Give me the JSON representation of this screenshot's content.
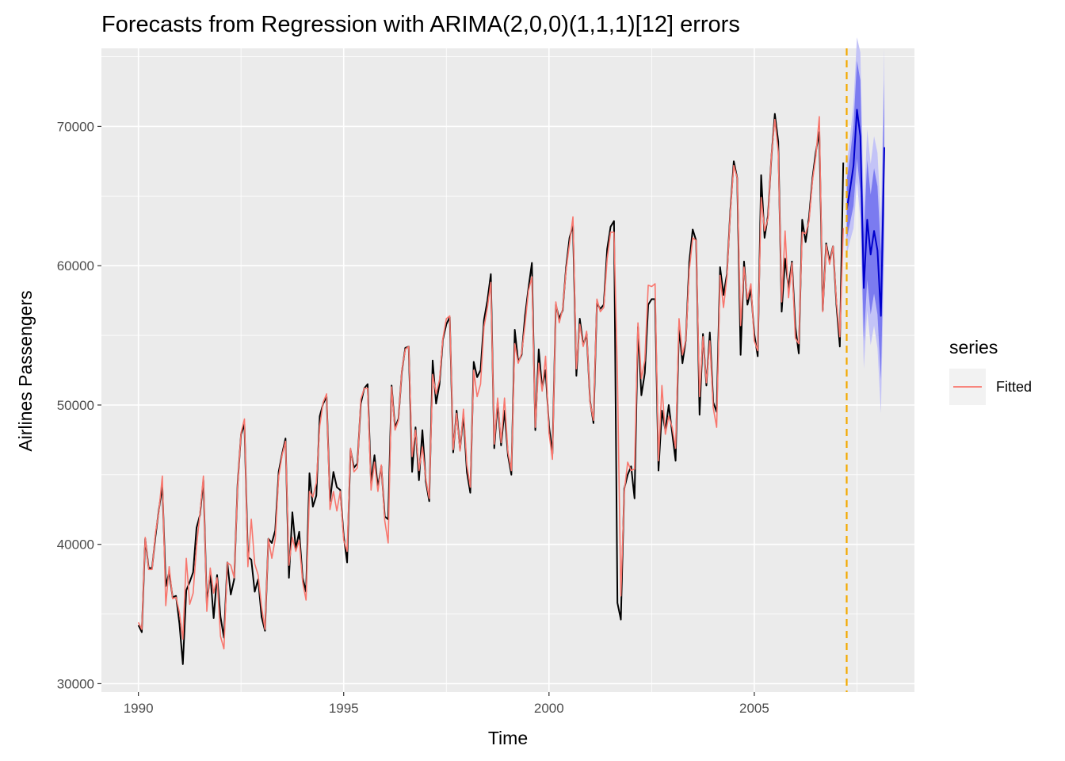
{
  "chart_data": {
    "type": "line",
    "title": "Forecasts from Regression with ARIMA(2,0,0)(1,1,1)[12] errors",
    "xlabel": "Time",
    "ylabel": "Airlines Passengers",
    "xlim": [
      1989.1,
      2008.9
    ],
    "ylim": [
      29400,
      75600
    ],
    "x_ticks": [
      1990,
      1995,
      2000,
      2005
    ],
    "x_tick_labels": [
      "1990",
      "1995",
      "2000",
      "2005"
    ],
    "y_ticks": [
      30000,
      40000,
      50000,
      60000,
      70000
    ],
    "y_tick_labels": [
      "30000",
      "40000",
      "50000",
      "60000",
      "70000"
    ],
    "grid": true,
    "legend": {
      "title": "series",
      "position": "right",
      "entries": [
        {
          "label": "Fitted",
          "color": "#f8766d"
        }
      ]
    },
    "forecast_start": 2007.25,
    "colors": {
      "actual": "#000000",
      "fitted": "#f8766d",
      "forecast": "#0000cc",
      "pi80": "#7b7bf0",
      "pi95": "#c3c3f7",
      "vline": "#f2a900",
      "panel": "#ebebeb",
      "grid_major": "#ffffff"
    },
    "series": [
      {
        "id": "actual",
        "start": 1990.0,
        "freq": 12,
        "values": [
          34200,
          33700,
          40400,
          38300,
          38300,
          40600,
          42500,
          44200,
          37000,
          38000,
          36200,
          36300,
          34300,
          31400,
          36700,
          37300,
          38000,
          41200,
          42100,
          44600,
          35700,
          37900,
          34700,
          37800,
          34800,
          33300,
          38700,
          36400,
          37500,
          44300,
          47900,
          48600,
          39100,
          38900,
          36600,
          37500,
          34800,
          33800,
          40400,
          40100,
          41000,
          45200,
          46500,
          47600,
          37600,
          42300,
          39700,
          40900,
          37600,
          36600,
          45100,
          42700,
          43500,
          49200,
          50100,
          50600,
          43100,
          45200,
          44100,
          43900,
          40600,
          38700,
          46800,
          45500,
          45800,
          50100,
          51200,
          51500,
          44400,
          46400,
          44100,
          45600,
          42000,
          41800,
          51400,
          48400,
          49000,
          52400,
          54100,
          54200,
          45200,
          48400,
          44600,
          48200,
          44500,
          43100,
          53200,
          50100,
          51500,
          54700,
          55800,
          56300,
          46600,
          49600,
          46800,
          49300,
          45200,
          43700,
          53100,
          52000,
          52500,
          56100,
          57500,
          59400,
          46900,
          50200,
          47100,
          49600,
          46400,
          45000,
          55400,
          53100,
          53600,
          56400,
          58400,
          60200,
          48200,
          54000,
          51200,
          52500,
          48500,
          46500,
          57200,
          56200,
          56800,
          59900,
          62000,
          62900,
          52100,
          56200,
          54300,
          55100,
          50300,
          48700,
          57300,
          56900,
          57200,
          61200,
          62800,
          63200,
          35800,
          34600,
          44000,
          45000,
          45600,
          43300,
          55600,
          50700,
          52300,
          57200,
          57600,
          57600,
          45300,
          49600,
          48200,
          50000,
          48000,
          46000,
          55600,
          53000,
          54700,
          60300,
          62600,
          61800,
          49300,
          55100,
          51400,
          55200,
          50200,
          49500,
          59900,
          57900,
          59400,
          64000,
          67500,
          66300,
          53600,
          60300,
          57200,
          58300,
          55100,
          53500,
          66500,
          62000,
          63600,
          67800,
          70900,
          68900,
          56700,
          60500,
          58400,
          60300,
          55600,
          53700,
          63300,
          61700,
          63500,
          66300,
          68200,
          69600,
          56800,
          61600,
          60300,
          61400,
          57200,
          54200,
          67400
        ]
      },
      {
        "id": "fitted",
        "start": 1990.0,
        "freq": 12,
        "values": [
          34400,
          33900,
          40500,
          38200,
          38200,
          40800,
          42400,
          44900,
          35600,
          38400,
          36100,
          36200,
          35100,
          33200,
          39000,
          35700,
          36500,
          39900,
          42200,
          44900,
          35200,
          38300,
          36500,
          37600,
          33400,
          32500,
          38700,
          38500,
          37600,
          44200,
          48000,
          49000,
          38400,
          41800,
          38600,
          37800,
          35500,
          33900,
          40400,
          39000,
          40400,
          44900,
          46400,
          47400,
          38500,
          40500,
          39500,
          40300,
          37300,
          36000,
          43800,
          43400,
          44400,
          48500,
          50200,
          50800,
          42500,
          43800,
          42400,
          43800,
          40300,
          39500,
          46900,
          45200,
          45500,
          50400,
          51200,
          51200,
          43900,
          45900,
          43800,
          45700,
          41700,
          40100,
          51300,
          48200,
          48900,
          52500,
          54000,
          54200,
          46300,
          48200,
          45300,
          47000,
          44700,
          43300,
          52200,
          50800,
          51800,
          54800,
          56200,
          56400,
          46800,
          49400,
          46700,
          49700,
          45700,
          44100,
          52500,
          50600,
          51500,
          55600,
          57000,
          58800,
          47200,
          50500,
          47300,
          50500,
          46600,
          45300,
          54400,
          53000,
          53700,
          55800,
          58200,
          59200,
          48400,
          53000,
          51000,
          53500,
          48000,
          46100,
          57400,
          55900,
          56900,
          59700,
          61600,
          63500,
          52600,
          55800,
          54200,
          55300,
          50200,
          48900,
          57600,
          56700,
          57000,
          60500,
          62400,
          62400,
          52100,
          36300,
          43800,
          45900,
          45300,
          45400,
          55900,
          51900,
          53200,
          58600,
          58500,
          58700,
          46000,
          51400,
          47900,
          49200,
          48400,
          46900,
          56200,
          53600,
          54700,
          59700,
          62000,
          61800,
          50600,
          54900,
          51600,
          54600,
          49800,
          48400,
          59300,
          57000,
          59200,
          63900,
          67200,
          66300,
          55700,
          59900,
          57600,
          58700,
          54600,
          53900,
          64900,
          62500,
          63400,
          67900,
          70500,
          68200,
          57400,
          62500,
          57700,
          60200,
          54800,
          54400,
          62400,
          62300,
          63200,
          66100,
          67900,
          70700,
          56700,
          61500,
          60100,
          61400,
          57400,
          54900,
          62700
        ]
      },
      {
        "id": "forecast",
        "start": 2007.25,
        "freq": 12,
        "values": [
          64000,
          65500,
          67200,
          71200,
          69300,
          58400,
          63300,
          60800,
          62500,
          61100,
          56400,
          68500
        ]
      }
    ],
    "intervals": {
      "start": 2007.25,
      "freq": 12,
      "lo95": [
        60800,
        61800,
        62700,
        66000,
        63300,
        52600,
        56800,
        54300,
        55700,
        54100,
        49400,
        61300
      ],
      "lo80": [
        61900,
        63100,
        64300,
        67700,
        65300,
        54600,
        59000,
        56500,
        58000,
        56500,
        51800,
        63700
      ],
      "hi80": [
        66100,
        67900,
        70100,
        74700,
        73300,
        62200,
        67600,
        65100,
        67000,
        65700,
        61000,
        73300
      ],
      "hi95": [
        67200,
        69200,
        71700,
        76400,
        75300,
        64200,
        69800,
        67300,
        69300,
        68100,
        63400,
        75700
      ]
    }
  }
}
